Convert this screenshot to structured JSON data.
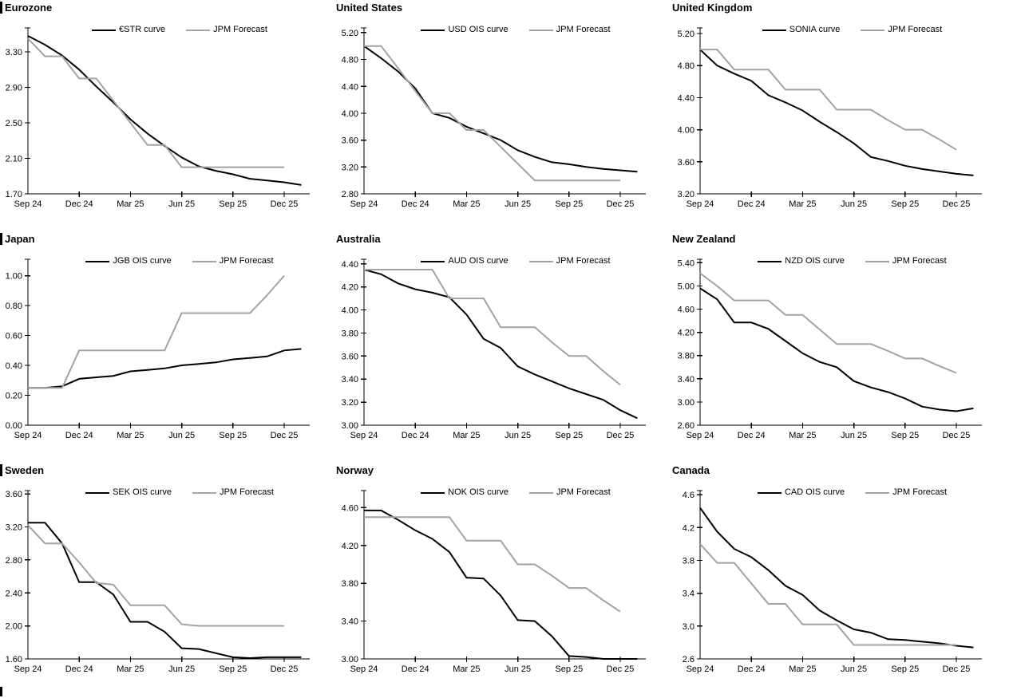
{
  "colors": {
    "black": "#000000",
    "gray": "#a3a3a3",
    "axis": "#000000"
  },
  "chart_data": {
    "type": "line",
    "grid": "3x3",
    "months": [
      "Sep 24",
      "Oct 24",
      "Nov 24",
      "Dec 24",
      "Jan 25",
      "Feb 25",
      "Mar 25",
      "Apr 25",
      "May 25",
      "Jun 25",
      "Jul 25",
      "Aug 25",
      "Sep 25",
      "Oct 25",
      "Nov 25",
      "Dec 25",
      "Jan 26"
    ],
    "x_tick_labels": [
      "Sep 24",
      "Dec 24",
      "Mar 25",
      "Jun 25",
      "Sep 25",
      "Dec 25"
    ],
    "x_tick_indices": [
      0,
      3,
      6,
      9,
      12,
      15
    ],
    "legend_position": "top-center",
    "charts": [
      {
        "title": "Eurozone",
        "y_tick_labels": [
          "3.30",
          "2.90",
          "2.50",
          "2.10",
          "1.70"
        ],
        "y_tick_values": [
          3.3,
          2.9,
          2.5,
          2.1,
          1.7
        ],
        "ymin": 1.7,
        "ymax": 3.57,
        "series": [
          {
            "name": "€STR curve",
            "color": "black",
            "values": [
              3.48,
              3.38,
              3.26,
              3.1,
              2.91,
              2.73,
              2.54,
              2.38,
              2.24,
              2.11,
              2.01,
              1.96,
              1.92,
              1.87,
              1.85,
              1.83,
              1.8
            ]
          },
          {
            "name": "JPM Forecast",
            "color": "gray",
            "values": [
              3.45,
              3.25,
              3.25,
              3.0,
              3.0,
              2.75,
              2.5,
              2.25,
              2.25,
              2.0,
              2.0,
              2.0,
              2.0,
              2.0,
              2.0,
              2.0,
              null
            ]
          }
        ]
      },
      {
        "title": "United States",
        "y_tick_labels": [
          "5.20",
          "4.80",
          "4.40",
          "4.00",
          "3.60",
          "3.20",
          "2.80"
        ],
        "y_tick_values": [
          5.2,
          4.8,
          4.4,
          4.0,
          3.6,
          3.2,
          2.8
        ],
        "ymin": 2.8,
        "ymax": 5.27,
        "series": [
          {
            "name": "USD OIS curve",
            "color": "black",
            "values": [
              5.0,
              4.82,
              4.62,
              4.37,
              4.0,
              3.93,
              3.8,
              3.7,
              3.6,
              3.45,
              3.35,
              3.27,
              3.24,
              3.2,
              3.17,
              3.15,
              3.13
            ]
          },
          {
            "name": "JPM Forecast",
            "color": "gray",
            "values": [
              5.0,
              5.0,
              4.67,
              4.33,
              4.0,
              4.0,
              3.75,
              3.75,
              3.5,
              3.25,
              3.0,
              3.0,
              3.0,
              3.0,
              3.0,
              3.0,
              null
            ]
          }
        ]
      },
      {
        "title": "United Kingdom",
        "y_tick_labels": [
          "5.20",
          "4.80",
          "4.40",
          "4.00",
          "3.60",
          "3.20"
        ],
        "y_tick_values": [
          5.2,
          4.8,
          4.4,
          4.0,
          3.6,
          3.2
        ],
        "ymin": 3.2,
        "ymax": 5.27,
        "series": [
          {
            "name": "SONIA curve",
            "color": "black",
            "values": [
              5.0,
              4.8,
              4.7,
              4.61,
              4.43,
              4.34,
              4.24,
              4.1,
              3.97,
              3.83,
              3.66,
              3.61,
              3.55,
              3.51,
              3.48,
              3.45,
              3.43
            ]
          },
          {
            "name": "JPM Forecast",
            "color": "gray",
            "values": [
              5.0,
              5.0,
              4.75,
              4.75,
              4.75,
              4.5,
              4.5,
              4.5,
              4.25,
              4.25,
              4.25,
              4.12,
              4.0,
              4.0,
              3.88,
              3.75,
              null
            ]
          }
        ]
      },
      {
        "title": "Japan",
        "y_tick_labels": [
          "1.00",
          "0.80",
          "0.60",
          "0.40",
          "0.20",
          "0.00"
        ],
        "y_tick_values": [
          1.0,
          0.8,
          0.6,
          0.4,
          0.2,
          0.0
        ],
        "ymin": 0.0,
        "ymax": 1.11,
        "series": [
          {
            "name": "JGB OIS curve",
            "color": "black",
            "values": [
              0.25,
              0.25,
              0.26,
              0.31,
              0.32,
              0.33,
              0.36,
              0.37,
              0.38,
              0.4,
              0.41,
              0.42,
              0.44,
              0.45,
              0.46,
              0.5,
              0.51
            ]
          },
          {
            "name": "JPM Forecast",
            "color": "gray",
            "values": [
              0.25,
              0.25,
              0.25,
              0.5,
              0.5,
              0.5,
              0.5,
              0.5,
              0.5,
              0.75,
              0.75,
              0.75,
              0.75,
              0.75,
              0.87,
              1.0,
              null
            ]
          }
        ]
      },
      {
        "title": "Australia",
        "y_tick_labels": [
          "4.40",
          "4.20",
          "4.00",
          "3.80",
          "3.60",
          "3.40",
          "3.20",
          "3.00"
        ],
        "y_tick_values": [
          4.4,
          4.2,
          4.0,
          3.8,
          3.6,
          3.4,
          3.2,
          3.0
        ],
        "ymin": 3.0,
        "ymax": 4.44,
        "series": [
          {
            "name": "AUD OIS curve",
            "color": "black",
            "values": [
              4.35,
              4.31,
              4.23,
              4.18,
              4.15,
              4.11,
              3.96,
              3.75,
              3.67,
              3.51,
              3.44,
              3.38,
              3.32,
              3.27,
              3.22,
              3.13,
              3.06
            ]
          },
          {
            "name": "JPM Forecast",
            "color": "gray",
            "values": [
              4.35,
              4.35,
              4.35,
              4.35,
              4.35,
              4.1,
              4.1,
              4.1,
              3.85,
              3.85,
              3.85,
              3.72,
              3.6,
              3.6,
              3.47,
              3.35,
              null
            ]
          }
        ]
      },
      {
        "title": "New Zealand",
        "y_tick_labels": [
          "5.40",
          "5.00",
          "4.60",
          "4.20",
          "3.80",
          "3.40",
          "3.00",
          "2.60"
        ],
        "y_tick_values": [
          5.4,
          5.0,
          4.6,
          4.2,
          3.8,
          3.4,
          3.0,
          2.6
        ],
        "ymin": 2.6,
        "ymax": 5.46,
        "series": [
          {
            "name": "NZD OIS curve",
            "color": "black",
            "values": [
              4.96,
              4.77,
              4.37,
              4.37,
              4.26,
              4.05,
              3.84,
              3.69,
              3.6,
              3.36,
              3.25,
              3.17,
              3.06,
              2.92,
              2.87,
              2.84,
              2.89
            ]
          },
          {
            "name": "JPM Forecast",
            "color": "gray",
            "values": [
              5.22,
              5.0,
              4.75,
              4.75,
              4.75,
              4.5,
              4.5,
              4.25,
              4.0,
              4.0,
              4.0,
              3.88,
              3.75,
              3.75,
              3.62,
              3.5,
              null
            ]
          }
        ]
      },
      {
        "title": "Sweden",
        "y_tick_labels": [
          "3.60",
          "3.20",
          "2.80",
          "2.40",
          "2.00",
          "1.60"
        ],
        "y_tick_values": [
          3.6,
          3.2,
          2.8,
          2.4,
          2.0,
          1.6
        ],
        "ymin": 1.6,
        "ymax": 3.64,
        "series": [
          {
            "name": "SEK OIS curve",
            "color": "black",
            "values": [
              3.25,
              3.25,
              3.0,
              2.53,
              2.53,
              2.38,
              2.05,
              2.05,
              1.93,
              1.73,
              1.72,
              1.67,
              1.62,
              1.61,
              1.62,
              1.62,
              1.62
            ]
          },
          {
            "name": "JPM Forecast",
            "color": "gray",
            "values": [
              3.22,
              3.0,
              3.0,
              2.77,
              2.52,
              2.5,
              2.25,
              2.25,
              2.25,
              2.02,
              2.0,
              2.0,
              2.0,
              2.0,
              2.0,
              2.0,
              null
            ]
          }
        ]
      },
      {
        "title": "Norway",
        "y_tick_labels": [
          "4.60",
          "4.20",
          "3.80",
          "3.40",
          "3.00"
        ],
        "y_tick_values": [
          4.6,
          4.2,
          3.8,
          3.4,
          3.0
        ],
        "ymin": 3.0,
        "ymax": 4.78,
        "series": [
          {
            "name": "NOK OIS curve",
            "color": "black",
            "values": [
              4.57,
              4.57,
              4.47,
              4.36,
              4.27,
              4.13,
              3.86,
              3.85,
              3.67,
              3.41,
              3.4,
              3.24,
              3.03,
              3.02,
              3.0,
              3.0,
              3.0
            ]
          },
          {
            "name": "JPM Forecast",
            "color": "gray",
            "values": [
              4.5,
              4.5,
              4.5,
              4.5,
              4.5,
              4.5,
              4.25,
              4.25,
              4.25,
              4.0,
              4.0,
              3.88,
              3.75,
              3.75,
              3.62,
              3.5,
              null
            ]
          }
        ]
      },
      {
        "title": "Canada",
        "y_tick_labels": [
          "4.6",
          "4.2",
          "3.8",
          "3.4",
          "3.0",
          "2.6"
        ],
        "y_tick_values": [
          4.6,
          4.2,
          3.8,
          3.4,
          3.0,
          2.6
        ],
        "ymin": 2.6,
        "ymax": 4.65,
        "series": [
          {
            "name": "CAD OIS curve",
            "color": "black",
            "values": [
              4.44,
              4.15,
              3.94,
              3.84,
              3.68,
              3.49,
              3.38,
              3.19,
              3.07,
              2.96,
              2.92,
              2.84,
              2.83,
              2.81,
              2.79,
              2.76,
              2.74
            ]
          },
          {
            "name": "JPM Forecast",
            "color": "gray",
            "values": [
              4.0,
              3.77,
              3.77,
              3.52,
              3.27,
              3.27,
              3.02,
              3.02,
              3.02,
              2.77,
              2.77,
              2.77,
              2.77,
              2.77,
              2.77,
              2.77,
              null
            ]
          }
        ]
      }
    ]
  }
}
